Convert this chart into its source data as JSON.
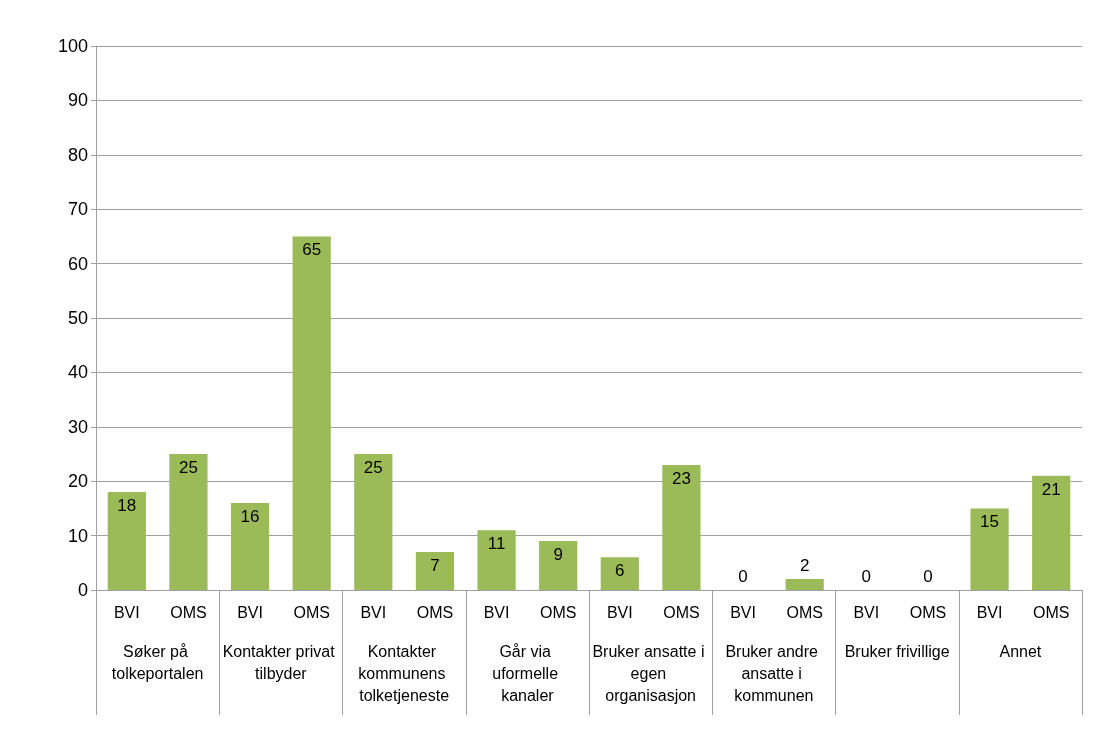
{
  "chart_data": {
    "type": "bar",
    "categories": [
      "BVI",
      "OMS",
      "BVI",
      "OMS",
      "BVI",
      "OMS",
      "BVI",
      "OMS",
      "BVI",
      "OMS",
      "BVI",
      "OMS",
      "BVI",
      "OMS",
      "BVI",
      "OMS"
    ],
    "values": [
      18,
      25,
      16,
      65,
      25,
      7,
      11,
      9,
      6,
      23,
      0,
      2,
      0,
      0,
      15,
      21
    ],
    "color": "#9bbb59",
    "data_labels": true,
    "annotations": [
      "Søker på tolkeportalen",
      "Kontakter privat tilbyder",
      "Kontakter kommunens tolketjeneste",
      "Går via uformelle kanaler",
      "Bruker ansatte i egen organisasjon",
      "Bruker andre ansatte i kommunen",
      "Bruker frivillige",
      "Annet"
    ],
    "ylim": [
      0,
      100
    ],
    "yticks": [
      0,
      10,
      20,
      30,
      40,
      50,
      60,
      70,
      80,
      90,
      100
    ],
    "grid": "y"
  }
}
